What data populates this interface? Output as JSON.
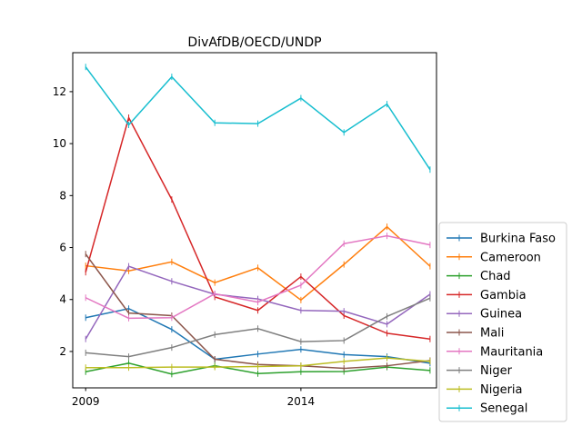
{
  "chart_data": {
    "type": "line",
    "title": "DivAfDB/OECD/UNDP",
    "xlabel": "",
    "ylabel": "",
    "x": [
      2009,
      2010,
      2011,
      2012,
      2013,
      2014,
      2015,
      2016,
      2017
    ],
    "xlim": [
      2008.7,
      2017.15
    ],
    "ylim": [
      0.6,
      13.5
    ],
    "xticks": [
      2009,
      2014
    ],
    "yticks": [
      2,
      4,
      6,
      8,
      10,
      12
    ],
    "legend_position": "right",
    "series": [
      {
        "name": "Burkina Faso",
        "color": "#1f77b4",
        "values": [
          3.3,
          3.65,
          2.85,
          1.7,
          1.9,
          2.08,
          1.88,
          1.8,
          1.55
        ]
      },
      {
        "name": "Cameroon",
        "color": "#ff7f0e",
        "values": [
          5.3,
          5.1,
          5.45,
          4.65,
          5.22,
          3.98,
          5.35,
          6.8,
          5.28
        ]
      },
      {
        "name": "Chad",
        "color": "#2ca02c",
        "values": [
          1.22,
          1.55,
          1.13,
          1.45,
          1.15,
          1.22,
          1.23,
          1.4,
          1.27
        ]
      },
      {
        "name": "Gambia",
        "color": "#d62728",
        "values": [
          5.05,
          11.0,
          7.85,
          4.1,
          3.58,
          4.88,
          3.38,
          2.7,
          2.48
        ]
      },
      {
        "name": "Guinea",
        "color": "#9467bd",
        "values": [
          2.48,
          5.28,
          4.7,
          4.2,
          4.02,
          3.58,
          3.55,
          3.05,
          4.2
        ]
      },
      {
        "name": "Mali",
        "color": "#8c564b",
        "values": [
          5.75,
          3.48,
          3.38,
          1.7,
          1.5,
          1.45,
          1.35,
          1.45,
          1.65
        ]
      },
      {
        "name": "Mauritania",
        "color": "#e377c2",
        "values": [
          4.07,
          3.28,
          3.3,
          4.22,
          3.9,
          4.55,
          6.15,
          6.45,
          6.1
        ]
      },
      {
        "name": "Niger",
        "color": "#7f7f7f",
        "values": [
          1.95,
          1.8,
          2.15,
          2.65,
          2.88,
          2.38,
          2.42,
          3.35,
          4.05
        ]
      },
      {
        "name": "Nigeria",
        "color": "#bcbd22",
        "values": [
          1.38,
          1.38,
          1.4,
          1.4,
          1.42,
          1.45,
          1.62,
          1.75,
          1.62
        ]
      },
      {
        "name": "Senegal",
        "color": "#17becf",
        "values": [
          12.95,
          10.72,
          12.57,
          10.8,
          10.77,
          11.75,
          10.43,
          11.52,
          9.0
        ]
      }
    ]
  }
}
